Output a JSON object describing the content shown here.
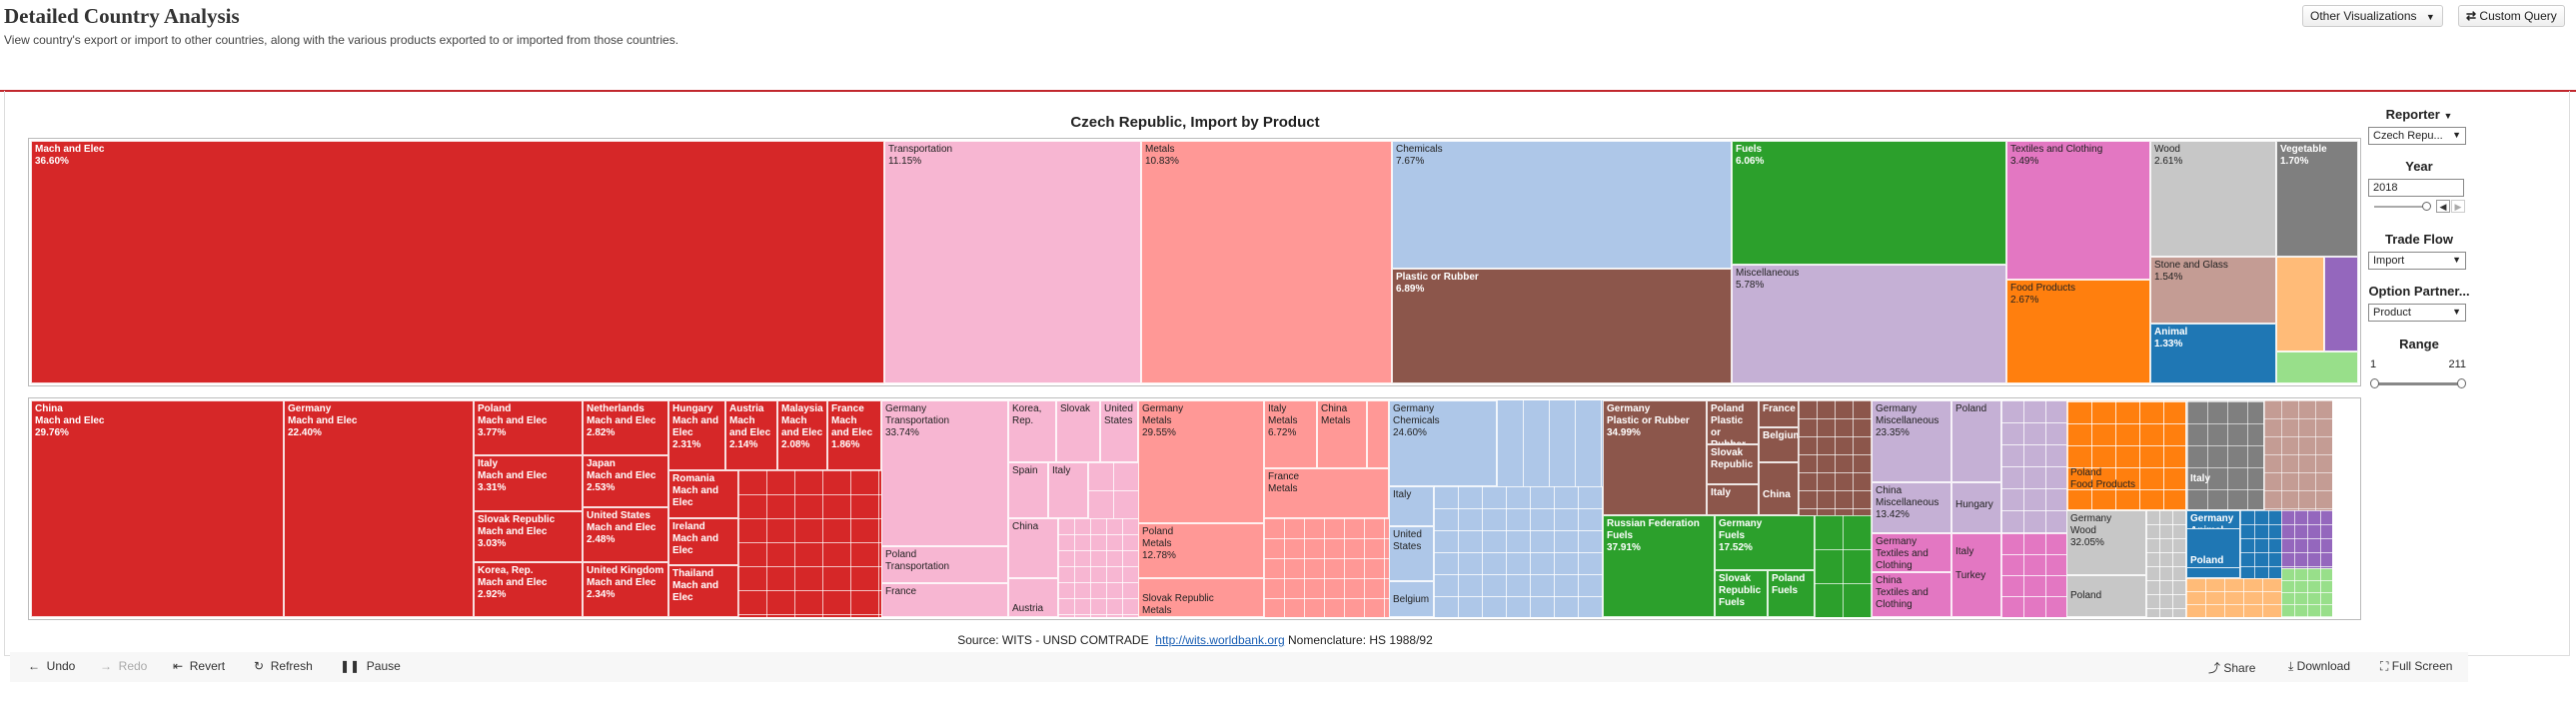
{
  "page": {
    "title": "Detailed Country Analysis",
    "subtitle": "View country's export or import to other countries, along with the various products exported to or imported from those countries."
  },
  "topbar": {
    "other_viz_label": "Other Visualizations",
    "custom_query_label": "Custom Query"
  },
  "chart": {
    "title": "Czech Republic, Import by Product"
  },
  "filters": {
    "reporter_label": "Reporter",
    "reporter_value": "Czech Repu...",
    "year_label": "Year",
    "year_value": "2018",
    "tradeflow_label": "Trade Flow",
    "tradeflow_value": "Import",
    "option_partner_label": "Option Partner...",
    "option_partner_value": "Product",
    "range_label": "Range",
    "range_min": "1",
    "range_max": "211"
  },
  "footer": {
    "source_text": "Source: WITS - UNSD COMTRADE",
    "link_text": "http://wits.worldbank.org",
    "nomenclature_text": "Nomenclature: HS 1988/92"
  },
  "toolbar": {
    "undo": "Undo",
    "redo": "Redo",
    "revert": "Revert",
    "refresh": "Refresh",
    "pause": "Pause",
    "share": "Share",
    "download": "Download",
    "fullscreen": "Full Screen"
  },
  "colors": {
    "mach_elec": "#d62728",
    "transportation": "#f7b6d2",
    "metals": "#ff9896",
    "chemicals": "#aec7e8",
    "plastic_rubber": "#8c564b",
    "fuels": "#2ca02c",
    "miscellaneous": "#c5b0d5",
    "textiles": "#e377c2",
    "food": "#ff7f0e",
    "wood": "#c7c7c7",
    "vegetable": "#7f7f7f",
    "stone_glass": "#c49c94",
    "animal": "#1f77b4",
    "accent": "#c1272d"
  },
  "chart_data": {
    "type": "treemap",
    "title": "Czech Republic, Import by Product",
    "products": [
      {
        "name": "Mach and Elec",
        "share": "36.60%"
      },
      {
        "name": "Transportation",
        "share": "11.15%"
      },
      {
        "name": "Metals",
        "share": "10.83%"
      },
      {
        "name": "Chemicals",
        "share": "7.67%"
      },
      {
        "name": "Plastic or Rubber",
        "share": "6.89%"
      },
      {
        "name": "Fuels",
        "share": "6.06%"
      },
      {
        "name": "Miscellaneous",
        "share": "5.78%"
      },
      {
        "name": "Textiles and Clothing",
        "share": "3.49%"
      },
      {
        "name": "Food Products",
        "share": "2.67%"
      },
      {
        "name": "Wood",
        "share": "2.61%"
      },
      {
        "name": "Vegetable",
        "share": "1.70%"
      },
      {
        "name": "Stone and Glass",
        "share": "1.54%"
      },
      {
        "name": "Animal",
        "share": "1.33%"
      }
    ],
    "partners": {
      "mach_elec": [
        {
          "country": "China",
          "share": "29.76%"
        },
        {
          "country": "Germany",
          "share": "22.40%"
        },
        {
          "country": "Poland",
          "share": "3.77%"
        },
        {
          "country": "Italy",
          "share": "3.31%"
        },
        {
          "country": "Slovak Republic",
          "share": "3.03%"
        },
        {
          "country": "Korea, Rep.",
          "share": "2.92%"
        },
        {
          "country": "Netherlands",
          "share": "2.82%"
        },
        {
          "country": "Japan",
          "share": "2.53%"
        },
        {
          "country": "United States",
          "share": "2.48%"
        },
        {
          "country": "United Kingdom",
          "share": "2.34%"
        },
        {
          "country": "Hungary",
          "share": "2.31%"
        },
        {
          "country": "Austria",
          "share": "2.14%"
        },
        {
          "country": "Malaysia",
          "share": "2.08%"
        },
        {
          "country": "France",
          "share": "1.86%"
        },
        {
          "country": "Romania",
          "share": ""
        },
        {
          "country": "Ireland",
          "share": ""
        },
        {
          "country": "Thailand",
          "share": ""
        }
      ],
      "transportation": [
        {
          "country": "Germany",
          "share": "33.74%"
        },
        {
          "country": "Poland",
          "share": ""
        },
        {
          "country": "France",
          "share": ""
        },
        {
          "country": "Korea, Rep.",
          "share": ""
        },
        {
          "country": "Slovak",
          "share": ""
        },
        {
          "country": "United States",
          "share": ""
        },
        {
          "country": "Spain",
          "share": ""
        },
        {
          "country": "Italy",
          "share": ""
        },
        {
          "country": "China",
          "share": ""
        },
        {
          "country": "Austria",
          "share": ""
        }
      ],
      "metals": [
        {
          "country": "Germany",
          "share": "29.55%"
        },
        {
          "country": "Poland",
          "share": "12.78%"
        },
        {
          "country": "Italy",
          "share": "6.72%"
        },
        {
          "country": "China",
          "share": ""
        },
        {
          "country": "France",
          "share": ""
        },
        {
          "country": "Slovak Republic",
          "share": ""
        }
      ],
      "chemicals": [
        {
          "country": "Germany",
          "share": "24.60%"
        },
        {
          "country": "Italy",
          "share": ""
        },
        {
          "country": "United States",
          "share": ""
        },
        {
          "country": "Belgium",
          "share": ""
        }
      ],
      "plastic_rubber": [
        {
          "country": "Germany",
          "share": "34.99%"
        },
        {
          "country": "Poland",
          "share": ""
        },
        {
          "country": "Slovak Republic",
          "share": ""
        },
        {
          "country": "Italy",
          "share": ""
        },
        {
          "country": "France",
          "share": ""
        },
        {
          "country": "Belgium",
          "share": ""
        },
        {
          "country": "China",
          "share": ""
        }
      ],
      "fuels": [
        {
          "country": "Russian Federation",
          "share": "37.91%"
        },
        {
          "country": "Germany",
          "share": "17.52%"
        },
        {
          "country": "Slovak Republic",
          "share": ""
        },
        {
          "country": "Poland",
          "share": ""
        }
      ],
      "miscellaneous": [
        {
          "country": "Germany",
          "share": "23.35%"
        },
        {
          "country": "China",
          "share": "13.42%"
        },
        {
          "country": "Poland",
          "share": ""
        },
        {
          "country": "Hungary",
          "share": ""
        }
      ],
      "textiles": [
        {
          "country": "Germany",
          "share": ""
        },
        {
          "country": "China",
          "share": ""
        },
        {
          "country": "Italy",
          "share": ""
        },
        {
          "country": "Turkey",
          "share": ""
        }
      ],
      "food": [
        {
          "country": "Poland",
          "share": ""
        }
      ],
      "wood": [
        {
          "country": "Germany",
          "share": "32.05%"
        },
        {
          "country": "Poland",
          "share": ""
        }
      ],
      "vegetable": [
        {
          "country": "Italy",
          "share": ""
        }
      ],
      "animal": [
        {
          "country": "Germany",
          "share": ""
        },
        {
          "country": "Poland",
          "share": ""
        }
      ]
    }
  }
}
